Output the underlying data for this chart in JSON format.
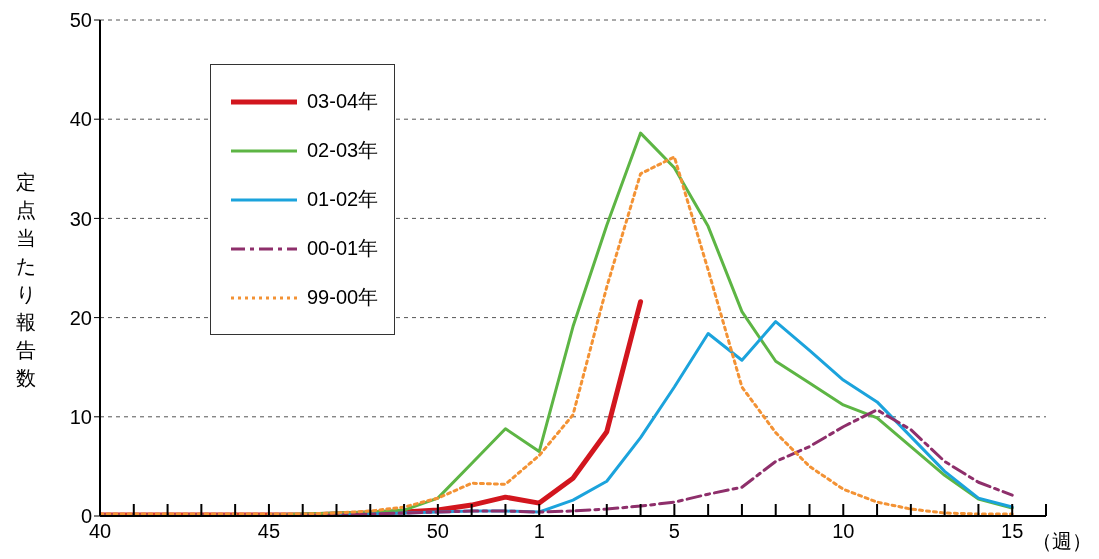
{
  "chart_data": {
    "type": "line",
    "ylabel": "定点当たり報告数",
    "xlabel": "（週）",
    "categories": [
      "40",
      null,
      null,
      null,
      null,
      "45",
      null,
      null,
      null,
      null,
      "50",
      null,
      null,
      "1",
      null,
      null,
      null,
      "5",
      null,
      null,
      null,
      null,
      "10",
      null,
      null,
      null,
      null,
      "15",
      null
    ],
    "series": [
      {
        "name": "03-04年",
        "color": "#d2161e",
        "line_style": "solid",
        "values": [
          0.1,
          0.1,
          0.1,
          0.1,
          0.1,
          0.1,
          0.1,
          0.2,
          0.3,
          0.4,
          0.6,
          1.1,
          1.9,
          1.3,
          3.8,
          8.5,
          21.6,
          null,
          null,
          null,
          null,
          null,
          null,
          null,
          null,
          null,
          null,
          null,
          null
        ]
      },
      {
        "name": "02-03年",
        "color": "#5db544",
        "line_style": "solid",
        "values": [
          null,
          null,
          null,
          null,
          null,
          0.1,
          0.2,
          0.3,
          0.4,
          0.6,
          1.8,
          5.3,
          8.8,
          6.5,
          19.1,
          29.3,
          38.6,
          35.1,
          29.2,
          20.6,
          15.6,
          13.4,
          11.2,
          9.9,
          7.0,
          4.1,
          1.7,
          0.8,
          null
        ]
      },
      {
        "name": "01-02年",
        "color": "#1ba3dc",
        "line_style": "solid",
        "values": [
          null,
          null,
          null,
          null,
          null,
          null,
          null,
          0.1,
          0.2,
          0.3,
          0.4,
          0.5,
          0.5,
          0.4,
          1.6,
          3.5,
          7.9,
          13.0,
          18.4,
          15.7,
          19.6,
          16.7,
          13.7,
          11.5,
          8.0,
          4.5,
          1.8,
          0.9,
          null
        ]
      },
      {
        "name": "00-01年",
        "color": "#8e2f6b",
        "line_style": "dashed",
        "values": [
          0.1,
          0.1,
          0.1,
          0.1,
          0.1,
          0.1,
          0.1,
          0.1,
          0.2,
          0.3,
          0.4,
          0.5,
          0.5,
          0.4,
          0.5,
          0.7,
          1.0,
          1.4,
          2.2,
          2.9,
          5.5,
          7.0,
          9.0,
          10.7,
          8.7,
          5.5,
          3.4,
          2.1,
          null
        ]
      },
      {
        "name": "99-00年",
        "color": "#f39234",
        "line_style": "dotted",
        "values": [
          0.2,
          0.2,
          0.2,
          0.2,
          0.2,
          0.2,
          0.2,
          0.3,
          0.5,
          0.9,
          1.8,
          3.3,
          3.2,
          6.1,
          10.2,
          23.1,
          34.5,
          36.2,
          24.8,
          13.0,
          8.4,
          5.0,
          2.7,
          1.4,
          0.7,
          0.3,
          0.2,
          0.2,
          null
        ]
      }
    ],
    "ylim": [
      0,
      50
    ],
    "yticks": [
      0,
      10,
      20,
      30,
      40,
      50
    ],
    "grid": "y",
    "legend": "top left",
    "marker": "none"
  }
}
